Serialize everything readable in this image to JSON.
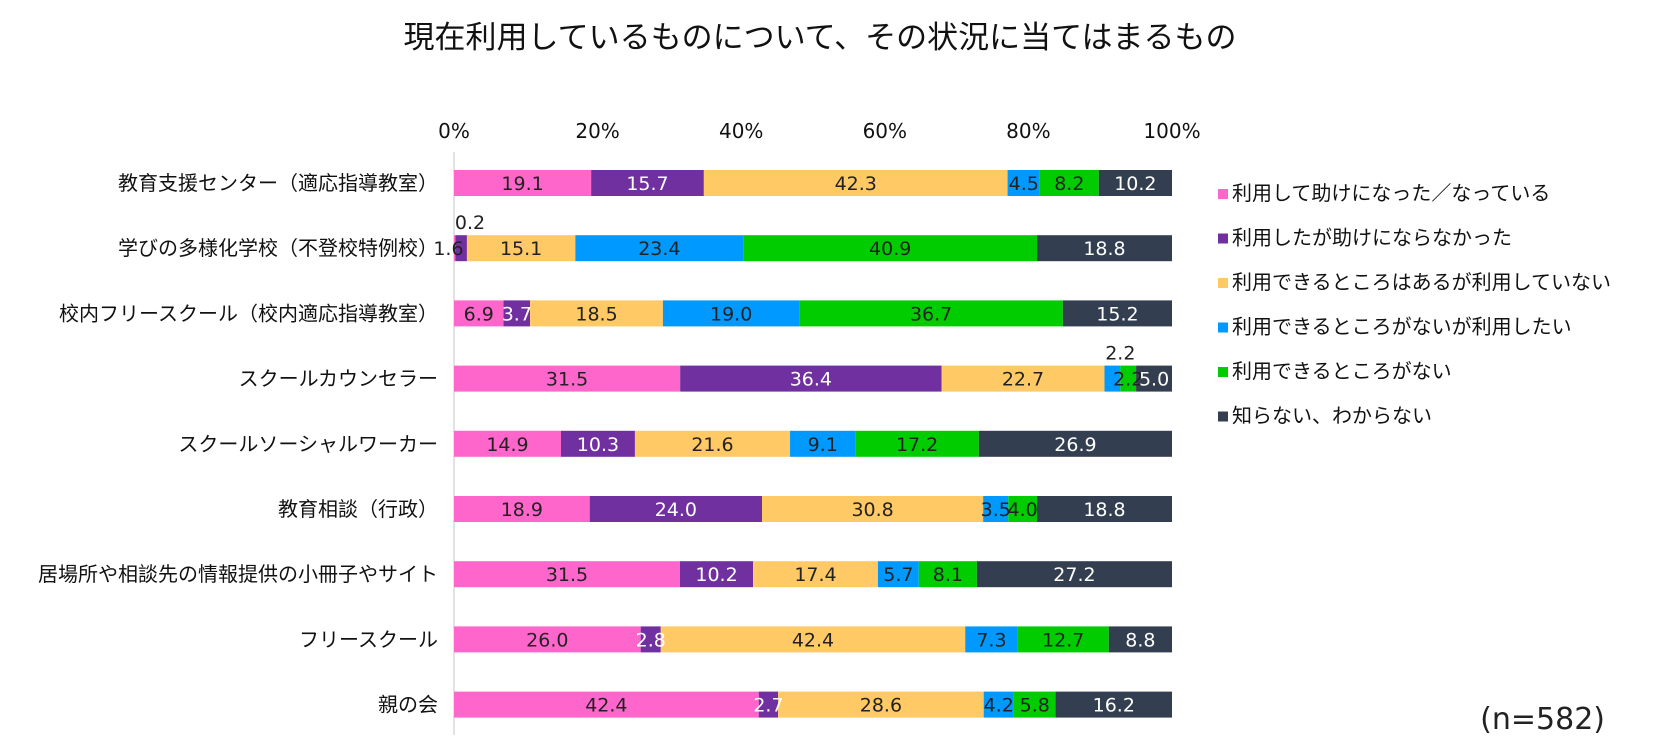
{
  "chart_data": {
    "type": "bar",
    "orientation": "horizontal",
    "stacked": "percent",
    "title": "現在利用しているものについて、その状況に当てはまるもの",
    "note": "(n=582)",
    "x_ticks": [
      "0%",
      "20%",
      "40%",
      "60%",
      "80%",
      "100%"
    ],
    "xlim": [
      0,
      100
    ],
    "legend_position": "right",
    "categories": [
      "教育支援センター（適応指導教室）",
      "学びの多様化学校（不登校特例校）",
      "校内フリースクール（校内適応指導教室）",
      "スクールカウンセラー",
      "スクールソーシャルワーカー",
      "教育相談（行政）",
      "居場所や相談先の情報提供の小冊子やサイト",
      "フリースクール",
      "親の会"
    ],
    "series": [
      {
        "name": "利用して助けになった／なっている",
        "color": "#FF66CC",
        "label_color": "#222222",
        "values": [
          19.1,
          0.2,
          6.9,
          31.5,
          14.9,
          18.9,
          31.5,
          26.0,
          42.4
        ],
        "labels": [
          "19.1",
          "0.2",
          "6.9",
          "31.5",
          "14.9",
          "18.9",
          "31.5",
          "26.0",
          "42.4"
        ]
      },
      {
        "name": "利用したが助けにならなかった",
        "color": "#7030A0",
        "label_color": "#ffffff",
        "values": [
          15.7,
          1.6,
          3.7,
          36.4,
          10.3,
          24.0,
          10.2,
          2.8,
          2.7
        ],
        "labels": [
          "15.7",
          "1.6",
          "3.7",
          "36.4",
          "10.3",
          "24.0",
          "10.2",
          "2.8",
          "2.7"
        ]
      },
      {
        "name": "利用できるところはあるが利用していない",
        "color": "#FFC966",
        "label_color": "#222222",
        "values": [
          42.3,
          15.1,
          18.5,
          22.7,
          21.6,
          30.8,
          17.4,
          42.4,
          28.6
        ],
        "labels": [
          "42.3",
          "15.1",
          "18.5",
          "22.7",
          "21.6",
          "30.8",
          "17.4",
          "42.4",
          "28.6"
        ]
      },
      {
        "name": "利用できるところがないが利用したい",
        "color": "#0099FF",
        "label_color": "#222222",
        "values": [
          4.5,
          23.4,
          19.0,
          2.2,
          9.1,
          3.5,
          5.7,
          7.3,
          4.2
        ],
        "labels": [
          "4.5",
          "23.4",
          "19.0",
          "2.2",
          "9.1",
          "3.5",
          "5.7",
          "7.3",
          "4.2"
        ]
      },
      {
        "name": "利用できるところがない",
        "color": "#00CC00",
        "label_color": "#222222",
        "values": [
          8.2,
          40.9,
          36.7,
          2.2,
          17.2,
          4.0,
          8.1,
          12.7,
          5.8
        ],
        "labels": [
          "8.2",
          "40.9",
          "36.7",
          "2.2",
          "17.2",
          "4.0",
          "8.1",
          "12.7",
          "5.8"
        ]
      },
      {
        "name": "知らない、わからない",
        "color": "#333F50",
        "label_color": "#ffffff",
        "values": [
          10.2,
          18.8,
          15.2,
          5.0,
          26.9,
          18.8,
          27.2,
          8.8,
          16.2
        ],
        "labels": [
          "10.2",
          "18.8",
          "15.2",
          "5.0",
          "26.9",
          "18.8",
          "27.2",
          "8.8",
          "16.2"
        ]
      }
    ]
  }
}
